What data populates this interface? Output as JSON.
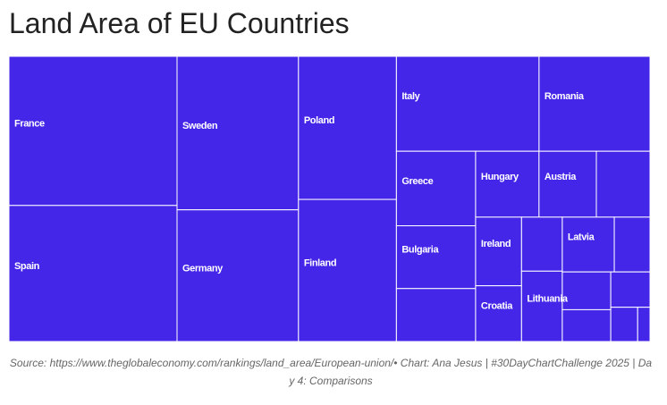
{
  "chart_data": {
    "type": "treemap",
    "title": "Land Area of EU Countries",
    "categories": [
      "France",
      "Spain",
      "Sweden",
      "Germany",
      "Poland",
      "Finland",
      "Italy",
      "Romania",
      "Greece",
      "Bulgaria",
      null,
      "Hungary",
      "Austria",
      null,
      "Ireland",
      "Croatia",
      null,
      "Lithuania",
      "Latvia",
      null,
      null,
      null,
      null,
      null,
      null
    ],
    "values": [
      547557,
      499564,
      407284,
      349390,
      306130,
      303940,
      295717,
      230080,
      128900,
      108560,
      91590,
      91260,
      82520,
      77220,
      68890,
      55960,
      48080,
      62620,
      62230,
      42750,
      40000,
      33670,
      30280,
      20140,
      9240
    ],
    "color": "#4426e8",
    "caption": "Source: https://www.theglobaleconomy.com/rankings/land_area/European-union/• Chart: Ana Jesus | #30DayChartChallenge 2025 | Day 4: Comparisons"
  }
}
